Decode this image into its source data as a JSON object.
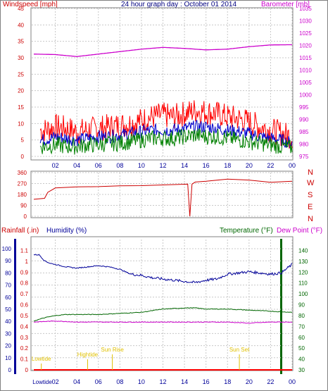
{
  "title": "24 hour graph day : October 01 2014",
  "colors": {
    "wind": "#ff0000",
    "wind_avg": "#0000cc",
    "wind_green": "#008000",
    "baro": "#cc00cc",
    "dir": "#cc0000",
    "rain": "#ff0000",
    "humidity": "#000099",
    "temp": "#006600",
    "dew": "#cc00cc",
    "annot": "#e0c000",
    "grid": "#c8c8c8"
  },
  "panels": {
    "wind": {
      "left_label": "Windspeed [mph]",
      "right_label": "Barometer [mb]"
    },
    "dir": {
      "compass": [
        "N",
        "W",
        "S",
        "E",
        "N"
      ]
    },
    "bottom": {
      "rain_label": "Rainfall (.in)",
      "hum_label": "Humidity (%)",
      "temp_label": "Temperature (°F)",
      "dew_label": "Dew Point (°F)"
    }
  },
  "chart_data": [
    {
      "type": "line",
      "title": "24 hour graph day : October 01 2014",
      "ylabel": "Windspeed [mph]",
      "ylabel_right": "Barometer [mb]",
      "x_ticks": [
        "02",
        "04",
        "06",
        "08",
        "10",
        "12",
        "14",
        "16",
        "18",
        "20",
        "22",
        "00"
      ],
      "ylim": [
        0,
        45
      ],
      "y_ticks": [
        0,
        5,
        10,
        15,
        20,
        25,
        30,
        35,
        40,
        45
      ],
      "ylim_right": [
        975,
        1035
      ],
      "y_ticks_right": [
        975,
        980,
        985,
        990,
        995,
        1000,
        1005,
        1010,
        1015,
        1020,
        1025,
        1030,
        1035
      ],
      "series": [
        {
          "name": "Windspeed [mph]",
          "x": [
            1,
            2,
            3,
            4,
            5,
            6,
            7,
            8,
            9,
            10,
            11,
            12,
            13,
            14,
            15,
            16,
            17,
            18,
            19,
            20,
            21,
            22,
            23,
            24
          ],
          "values": [
            8,
            9,
            8.5,
            7.5,
            8,
            8.5,
            9,
            9.5,
            10,
            11,
            12,
            12.5,
            12,
            13,
            14,
            13.5,
            13,
            12,
            11.5,
            10.5,
            9,
            8,
            7,
            6
          ]
        },
        {
          "x": [
            1,
            2,
            3,
            4,
            5,
            6,
            7,
            8,
            9,
            10,
            11,
            12,
            13,
            14,
            15,
            16,
            17,
            18,
            19,
            20,
            21,
            22,
            23,
            24
          ],
          "values": [
            5,
            6,
            5.5,
            5,
            5.5,
            6,
            6,
            6.5,
            7,
            7.5,
            8,
            8,
            8,
            8.5,
            9,
            9,
            8.5,
            8,
            7.5,
            7,
            6,
            5.5,
            5,
            4
          ]
        },
        {
          "x": [
            1,
            2,
            3,
            4,
            5,
            6,
            7,
            8,
            9,
            10,
            11,
            12,
            13,
            14,
            15,
            16,
            17,
            18,
            19,
            20,
            21,
            22,
            23,
            24
          ],
          "values": [
            3,
            3.5,
            3,
            3,
            3.5,
            3.5,
            4,
            4,
            4.5,
            5,
            5.5,
            5.5,
            5.5,
            6,
            6.5,
            6,
            6,
            5.5,
            5,
            4.5,
            4,
            3.5,
            3,
            2.5
          ]
        },
        {
          "name": "Barometer [mb]",
          "x": [
            0,
            2,
            4,
            6,
            8,
            10,
            12,
            14,
            16,
            18,
            20,
            22,
            24
          ],
          "values": [
            1016.5,
            1016.3,
            1015.5,
            1016.5,
            1017.5,
            1018.5,
            1019.2,
            1018.8,
            1018.2,
            1018.5,
            1019.5,
            1020.2,
            1020.3
          ]
        }
      ]
    },
    {
      "type": "line",
      "ylim": [
        0,
        360
      ],
      "y_ticks": [
        0,
        90,
        180,
        270,
        360
      ],
      "series": [
        {
          "name": "Wind direction",
          "x": [
            0,
            1,
            1.3,
            2,
            4,
            6,
            8,
            10,
            12,
            14,
            14.3,
            14.5,
            14.7,
            15,
            16,
            18,
            20,
            22,
            24
          ],
          "values": [
            140,
            148,
            200,
            232,
            240,
            247,
            252,
            255,
            258,
            262,
            265,
            0,
            268,
            280,
            290,
            305,
            298,
            282,
            290
          ]
        }
      ]
    },
    {
      "type": "line",
      "ylabel": "Rainfall (.in)",
      "ylabel_right": "Temperature (°F)",
      "ylim": [
        0,
        1.2
      ],
      "y_ticks_left_outer": [
        0,
        0.1,
        0.2,
        0.3,
        0.4,
        0.5,
        0.6,
        0.7,
        0.8,
        0.9,
        1,
        1.1
      ],
      "y_ticks_left_inner": [
        0,
        10,
        20,
        30,
        40,
        50,
        60,
        70,
        80,
        90,
        100
      ],
      "ylim_right": [
        30,
        150
      ],
      "y_ticks_right": [
        30,
        40,
        50,
        60,
        70,
        80,
        90,
        100,
        110,
        120,
        130,
        140
      ],
      "series": [
        {
          "name": "Humidity (%)",
          "x": [
            0,
            0.5,
            1,
            1.5,
            2,
            3,
            4,
            5,
            6,
            7,
            8,
            9,
            10,
            11,
            12,
            13,
            14,
            15,
            16,
            17,
            18,
            19,
            20,
            21,
            22,
            23,
            24
          ],
          "values": [
            95,
            95,
            90,
            88,
            87,
            85,
            84,
            85,
            86,
            85,
            83,
            79,
            78,
            76,
            75,
            74,
            73,
            72,
            74,
            75,
            79,
            80,
            81,
            80,
            79,
            80,
            87
          ]
        },
        {
          "name": "Temperature (°F)",
          "x": [
            0,
            1,
            2,
            3,
            4,
            6,
            8,
            10,
            12,
            14,
            15,
            16,
            18,
            20,
            22,
            24
          ],
          "values": [
            75,
            78,
            80,
            81,
            81,
            81,
            82,
            83,
            86,
            87,
            87,
            86,
            86,
            85,
            84,
            83
          ]
        },
        {
          "name": "Dew Point (°F)",
          "x": [
            0,
            2,
            4,
            6,
            8,
            10,
            12,
            14,
            16,
            18,
            20,
            22,
            24
          ],
          "values": [
            74,
            75,
            74,
            74,
            74,
            74,
            74,
            74,
            74,
            74,
            73,
            74,
            74
          ]
        },
        {
          "name": "Rainfall (.in)",
          "x": [
            0,
            24
          ],
          "values": [
            0,
            0
          ]
        }
      ],
      "annotations": [
        {
          "label": "Lowtide",
          "x": 0.7
        },
        {
          "label": "Hightide",
          "x": 5.0
        },
        {
          "label": "Sun Rise",
          "x": 7.3
        },
        {
          "label": "Sun Set",
          "x": 19.1
        }
      ]
    }
  ]
}
